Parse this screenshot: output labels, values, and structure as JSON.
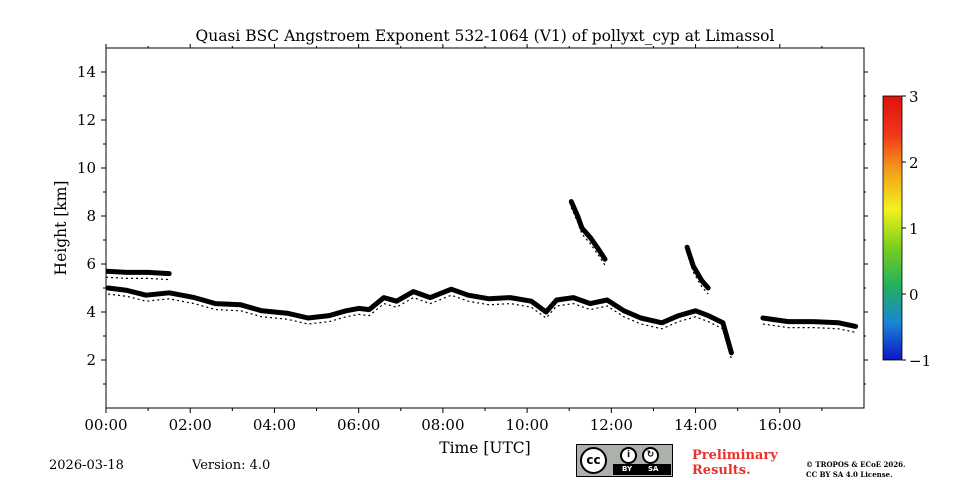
{
  "chart_data": {
    "type": "heatmap",
    "title": "Quasi BSC Angstroem Exponent 532-1064 (V1) of pollyxt_cyp at Limassol",
    "xlabel": "Time [UTC]",
    "ylabel": "Height [km]",
    "xlim_hours": [
      0,
      18
    ],
    "ylim_km": [
      0,
      15
    ],
    "x_tick_hours": [
      0,
      2,
      4,
      6,
      8,
      10,
      12,
      14,
      16
    ],
    "x_tick_labels": [
      "00:00",
      "02:00",
      "04:00",
      "06:00",
      "08:00",
      "10:00",
      "12:00",
      "14:00",
      "16:00"
    ],
    "y_ticks": [
      2,
      4,
      6,
      8,
      10,
      12,
      14
    ],
    "y_tick_labels": [
      "2",
      "4",
      "6",
      "8",
      "10",
      "12",
      "14"
    ],
    "colorbar": {
      "vmin": -1,
      "vmax": 3,
      "ticks": [
        -1,
        0,
        1,
        2,
        3
      ],
      "tick_labels": [
        "−1",
        "0",
        "1",
        "2",
        "3"
      ],
      "colormap": [
        "#0b16c8",
        "#1a86d4",
        "#22b25a",
        "#7ccf1d",
        "#f2f21c",
        "#f4a01a",
        "#f0361a",
        "#e0100c"
      ]
    },
    "features": [
      {
        "name": "boundary-layer-top",
        "color": "#000000",
        "points_hours_km": [
          [
            0.05,
            5.0
          ],
          [
            0.5,
            4.9
          ],
          [
            0.95,
            4.7
          ],
          [
            1.5,
            4.8
          ],
          [
            2.1,
            4.6
          ],
          [
            2.6,
            4.35
          ],
          [
            3.2,
            4.3
          ],
          [
            3.7,
            4.05
          ],
          [
            4.3,
            3.95
          ],
          [
            4.8,
            3.75
          ],
          [
            5.3,
            3.85
          ],
          [
            5.7,
            4.05
          ],
          [
            6.0,
            4.15
          ],
          [
            6.25,
            4.1
          ],
          [
            6.6,
            4.6
          ],
          [
            6.9,
            4.45
          ],
          [
            7.3,
            4.85
          ],
          [
            7.7,
            4.6
          ],
          [
            8.2,
            4.95
          ],
          [
            8.6,
            4.7
          ],
          [
            9.1,
            4.55
          ],
          [
            9.6,
            4.6
          ],
          [
            10.1,
            4.45
          ],
          [
            10.45,
            4.0
          ],
          [
            10.7,
            4.5
          ],
          [
            11.1,
            4.6
          ],
          [
            11.5,
            4.35
          ],
          [
            11.9,
            4.5
          ],
          [
            12.3,
            4.05
          ],
          [
            12.7,
            3.75
          ],
          [
            13.2,
            3.55
          ],
          [
            13.6,
            3.85
          ],
          [
            14.0,
            4.05
          ],
          [
            14.3,
            3.85
          ],
          [
            14.65,
            3.55
          ],
          [
            14.85,
            2.3
          ]
        ]
      },
      {
        "name": "residual-layer",
        "color": "#000000",
        "points_hours_km": [
          [
            0.0,
            5.7
          ],
          [
            0.5,
            5.65
          ],
          [
            1.0,
            5.65
          ],
          [
            1.5,
            5.6
          ]
        ]
      },
      {
        "name": "upper-aerosol-layer",
        "color": "#000000",
        "points_hours_km": [
          [
            11.05,
            8.6
          ],
          [
            11.2,
            8.0
          ],
          [
            11.3,
            7.5
          ],
          [
            11.5,
            7.1
          ],
          [
            11.7,
            6.6
          ],
          [
            11.85,
            6.2
          ]
        ]
      },
      {
        "name": "descending-plume",
        "color": "#000000",
        "points_hours_km": [
          [
            13.8,
            6.7
          ],
          [
            13.95,
            5.9
          ],
          [
            14.15,
            5.3
          ],
          [
            14.3,
            5.0
          ]
        ]
      },
      {
        "name": "late-layer",
        "color": "#000000",
        "points_hours_km": [
          [
            15.6,
            3.75
          ],
          [
            16.2,
            3.6
          ],
          [
            16.8,
            3.6
          ],
          [
            17.4,
            3.55
          ],
          [
            17.8,
            3.4
          ]
        ]
      }
    ]
  },
  "footer": {
    "date": "2026-03-18",
    "version": "Version: 4.0",
    "license_badge": {
      "cc": "cc",
      "by": "BY",
      "sa": "SA"
    },
    "preliminary_line1": "Preliminary",
    "preliminary_line2": "Results.",
    "copyright_line1": "© TROPOS & ECoE 2026.",
    "copyright_line2": "CC BY SA 4.0 License."
  }
}
